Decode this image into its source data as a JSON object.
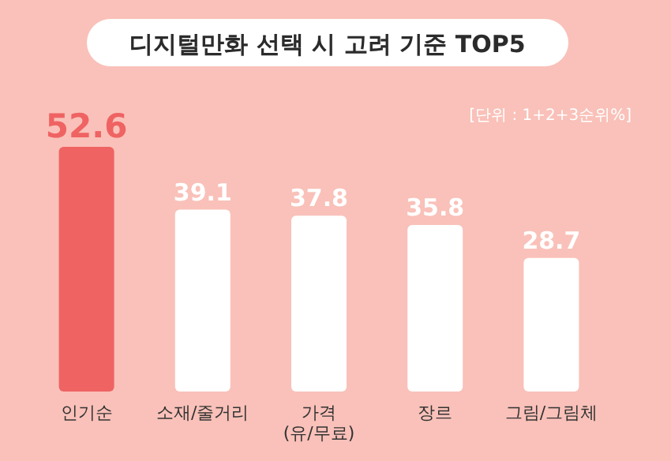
{
  "chart_data": {
    "type": "bar",
    "title": "디지털만화 선택 시 고려 기준 TOP5",
    "annotations": [
      "[단위 : 1+2+3순위%]"
    ],
    "categories": [
      "인기순",
      "소재/줄거리",
      "가격\n(유/무료)",
      "장르",
      "그림/그림체"
    ],
    "values": [
      52.6,
      39.1,
      37.8,
      35.8,
      28.7
    ],
    "colors": [
      "#ef6363",
      "#ffffff",
      "#ffffff",
      "#ffffff",
      "#ffffff"
    ],
    "data_labels": true
  }
}
